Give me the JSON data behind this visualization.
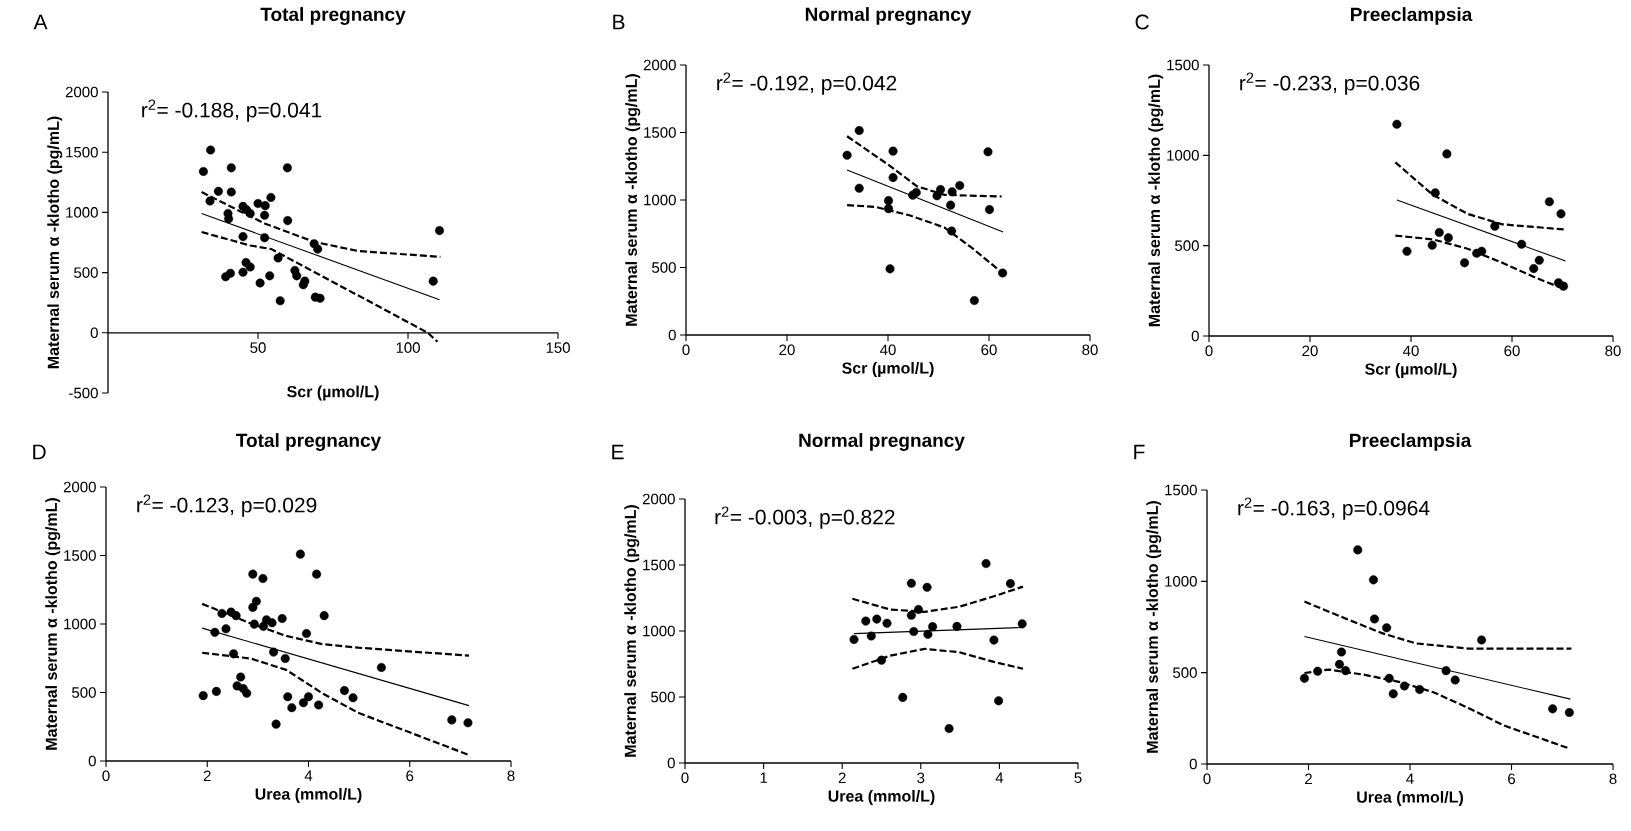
{
  "chart_data": [
    {
      "type": "scatter",
      "title": "Total pregnancy",
      "xlabel": "Scr (µmol/L)",
      "ylabel": "Maternal serum α -klotho (pg/mL)",
      "annotations": [
        "A",
        "r$^{2}$= -0.188, p=0.041"
      ],
      "xlim": [
        0,
        150
      ],
      "ylim": [
        -500,
        2000
      ],
      "xticks": [
        50,
        100,
        150
      ],
      "yticks": [
        -500,
        0,
        500,
        1000,
        1500,
        2000
      ],
      "series": [
        {
          "type": "scatter",
          "marker": "circle",
          "color": "#000000",
          "x": [
            31.8,
            34.2,
            34,
            36.8,
            41.1,
            41.1,
            39.2,
            40.8,
            40,
            40.2,
            45,
            46.2,
            47.4,
            45,
            46,
            47.4,
            45,
            50,
            52.4,
            52.2,
            54.3,
            52.2,
            50.7,
            53.9,
            56.7,
            57.4,
            59.8,
            59.9,
            62.3,
            62.9,
            65.1,
            65.6,
            68.7,
            69.9,
            69.1,
            70.7,
            108.4,
            110.5
          ],
          "values": [
            1340,
            1518,
            1095,
            1175,
            1370,
            1169,
            465,
            494,
            991,
            947,
            1050,
            1021,
            991,
            799,
            583,
            547,
            503,
            1074,
            1056,
            976,
            1124,
            790,
            414,
            473,
            621,
            266,
            1370,
            932,
            518,
            473,
            399,
            429,
            740,
            695,
            296,
            287,
            429,
            849
          ]
        },
        {
          "type": "line",
          "marker": "none",
          "line_style": "solid",
          "color": "#000000",
          "x": [
            31.2,
            110.5
          ],
          "values": [
            991,
            275
          ]
        },
        {
          "type": "line",
          "marker": "none",
          "line_style": "dashed",
          "color": "#000000",
          "x": [
            31.2,
            52.2,
            68.9,
            83.3,
            110.8
          ],
          "values": [
            1169,
            908,
            754,
            680,
            630
          ]
        },
        {
          "type": "line",
          "marker": "none",
          "line_style": "dashed",
          "color": "#000000",
          "x": [
            31.2,
            47.4,
            54.5,
            70,
            90,
            106.6,
            109.8
          ],
          "values": [
            837,
            725,
            695,
            488,
            222,
            0,
            -74
          ]
        }
      ]
    },
    {
      "type": "scatter",
      "title": "Normal pregnancy",
      "xlabel": "Scr (µmol/L)",
      "ylabel": "Maternal serum α -klotho (pg/mL)",
      "annotations": [
        "B",
        "r$^{2}$= -0.192, p=0.042"
      ],
      "xlim": [
        0,
        80
      ],
      "ylim": [
        0,
        2000
      ],
      "xticks": [
        0,
        20,
        40,
        60,
        80
      ],
      "yticks": [
        0,
        500,
        1000,
        1500,
        2000
      ],
      "series": [
        {
          "type": "scatter",
          "marker": "circle",
          "color": "#000000",
          "x": [
            31.9,
            34.3,
            34.3,
            41,
            41,
            40.1,
            40.1,
            40.4,
            44.9,
            45.6,
            49.7,
            50.4,
            52.7,
            54.2,
            52.4,
            52.6,
            59.8,
            60.1,
            57.1,
            62.7
          ],
          "values": [
            1332,
            1515,
            1087,
            1362,
            1166,
            995,
            936,
            490,
            1036,
            1056,
            1031,
            1077,
            1061,
            1107,
            962,
            770,
            1357,
            929,
            255,
            459
          ]
        },
        {
          "type": "line",
          "marker": "none",
          "line_style": "solid",
          "color": "#000000",
          "x": [
            31.9,
            62.8
          ],
          "values": [
            1222,
            763
          ]
        },
        {
          "type": "line",
          "marker": "none",
          "line_style": "dashed",
          "color": "#000000",
          "x": [
            31.9,
            40.3,
            45.7,
            51.2,
            62.5
          ],
          "values": [
            1472,
            1255,
            1102,
            1038,
            1026
          ]
        },
        {
          "type": "line",
          "marker": "none",
          "line_style": "dashed",
          "color": "#000000",
          "x": [
            31.9,
            37.5,
            44.4,
            51.2,
            56.7,
            62.5
          ],
          "values": [
            962,
            949,
            885,
            796,
            643,
            464
          ]
        }
      ]
    },
    {
      "type": "scatter",
      "title": "Preeclampsia",
      "xlabel": "Scr (µmol/L)",
      "ylabel": "Maternal serum α -klotho (pg/mL)",
      "annotations": [
        "C",
        "r$^{2}$= -0.233, p=0.036"
      ],
      "xlim": [
        0,
        80
      ],
      "ylim": [
        0,
        1500
      ],
      "xticks": [
        0,
        20,
        40,
        60,
        80
      ],
      "yticks": [
        0,
        500,
        1000,
        1500
      ],
      "series": [
        {
          "type": "scatter",
          "marker": "circle",
          "color": "#000000",
          "x": [
            37.2,
            47.1,
            44.8,
            39.2,
            44.2,
            45.6,
            47.4,
            50.6,
            53,
            54,
            56.6,
            61.9,
            64.3,
            65.4,
            67.4,
            69.7,
            69.2,
            70.2
          ],
          "values": [
            1172,
            1008,
            792,
            469,
            502,
            573,
            544,
            405,
            458,
            469,
            608,
            508,
            373,
            419,
            743,
            676,
            295,
            276
          ]
        },
        {
          "type": "line",
          "marker": "none",
          "line_style": "solid",
          "color": "#000000",
          "x": [
            37.2,
            70.6
          ],
          "values": [
            753,
            415
          ]
        },
        {
          "type": "line",
          "marker": "none",
          "line_style": "dashed",
          "color": "#000000",
          "x": [
            36.9,
            44.3,
            51.2,
            58.1,
            70.6
          ],
          "values": [
            961,
            782,
            676,
            618,
            589
          ]
        },
        {
          "type": "line",
          "marker": "none",
          "line_style": "dashed",
          "color": "#000000",
          "x": [
            36.9,
            44.3,
            51.2,
            58.1,
            65,
            70.2
          ],
          "values": [
            556,
            535,
            483,
            405,
            319,
            261
          ]
        }
      ]
    },
    {
      "type": "scatter",
      "title": "Total pregnancy",
      "xlabel": "Urea (mmol/L)",
      "ylabel": "Maternal serum α -klotho (pg/mL)",
      "annotations": [
        "D",
        "r$^{2}$= -0.123, p=0.029"
      ],
      "xlim": [
        0,
        8
      ],
      "ylim": [
        0,
        2000
      ],
      "xticks": [
        0,
        2,
        4,
        6,
        8
      ],
      "yticks": [
        0,
        500,
        1000,
        1500,
        2000
      ],
      "series": [
        {
          "type": "scatter",
          "marker": "circle",
          "color": "#000000",
          "x": [
            1.92,
            2.18,
            2.15,
            2.37,
            2.29,
            2.47,
            2.57,
            2.52,
            2.66,
            2.59,
            2.71,
            2.78,
            2.9,
            3.1,
            2.97,
            2.9,
            2.93,
            3.11,
            3.17,
            3.28,
            3.48,
            3.31,
            3.54,
            3.36,
            3.59,
            3.67,
            3.84,
            3.96,
            3.9,
            4.0,
            4.16,
            4.31,
            4.2,
            4.71,
            4.88,
            5.44,
            6.83,
            7.15
          ],
          "values": [
            477,
            508,
            939,
            965,
            1077,
            1087,
            1061,
            782,
            613,
            548,
            529,
            495,
            1364,
            1332,
            1166,
            1121,
            999,
            983,
            1030,
            1009,
            1040,
            795,
            748,
            269,
            469,
            389,
            1510,
            931,
            425,
            469,
            1364,
            1061,
            409,
            514,
            462,
            683,
            300,
            279
          ]
        },
        {
          "type": "line",
          "marker": "none",
          "line_style": "solid",
          "color": "#000000",
          "x": [
            1.9,
            7.17
          ],
          "values": [
            970,
            404
          ]
        },
        {
          "type": "line",
          "marker": "none",
          "line_style": "dashed",
          "color": "#000000",
          "x": [
            1.9,
            2.86,
            3.56,
            4.27,
            4.98,
            7.17
          ],
          "values": [
            1147,
            1004,
            913,
            853,
            827,
            769
          ]
        },
        {
          "type": "line",
          "marker": "none",
          "line_style": "dashed",
          "color": "#000000",
          "x": [
            1.9,
            2.86,
            3.56,
            4.27,
            4.98,
            7.17
          ],
          "values": [
            790,
            748,
            665,
            495,
            352,
            44
          ]
        }
      ]
    },
    {
      "type": "scatter",
      "title": "Normal pregnancy",
      "xlabel": "Urea (mmol/L)",
      "ylabel": "Maternal serum α -klotho (pg/mL)",
      "annotations": [
        "E",
        "r$^{2}$= -0.003, p=0.822"
      ],
      "xlim": [
        0,
        5
      ],
      "ylim": [
        0,
        2000
      ],
      "xticks": [
        0,
        1,
        2,
        3,
        4,
        5
      ],
      "yticks": [
        0,
        500,
        1000,
        1500,
        2000
      ],
      "series": [
        {
          "type": "scatter",
          "marker": "circle",
          "color": "#000000",
          "x": [
            2.15,
            2.3,
            2.44,
            2.57,
            2.37,
            2.5,
            2.77,
            2.88,
            2.88,
            2.97,
            2.91,
            3.08,
            3.09,
            3.15,
            3.36,
            3.46,
            3.83,
            3.93,
            3.99,
            4.14,
            4.29
          ],
          "values": [
            936,
            1075,
            1090,
            1059,
            962,
            779,
            497,
            1362,
            1119,
            1163,
            996,
            1331,
            975,
            1033,
            261,
            1035,
            1511,
            931,
            471,
            1359,
            1054
          ]
        },
        {
          "type": "line",
          "marker": "none",
          "line_style": "solid",
          "color": "#000000",
          "x": [
            2.15,
            4.3
          ],
          "values": [
            980,
            1027
          ]
        },
        {
          "type": "line",
          "marker": "none",
          "line_style": "dashed",
          "color": "#000000",
          "x": [
            2.13,
            2.61,
            3.05,
            3.49,
            3.93,
            4.3
          ],
          "values": [
            1244,
            1163,
            1145,
            1184,
            1263,
            1336
          ]
        },
        {
          "type": "line",
          "marker": "none",
          "line_style": "dashed",
          "color": "#000000",
          "x": [
            2.13,
            2.61,
            3.05,
            3.49,
            3.93,
            4.3
          ],
          "values": [
            714,
            813,
            865,
            839,
            766,
            714
          ]
        }
      ]
    },
    {
      "type": "scatter",
      "title": "Preeclampsia",
      "xlabel": "Urea (mmol/L)",
      "ylabel": "Maternal serum α -klotho (pg/mL)",
      "annotations": [
        "F",
        "r$^{2}$= -0.163, p=0.0964"
      ],
      "xlim": [
        0,
        8
      ],
      "ylim": [
        0,
        1500
      ],
      "xticks": [
        0,
        2,
        4,
        6,
        8
      ],
      "yticks": [
        0,
        500,
        1000,
        1500
      ],
      "series": [
        {
          "type": "scatter",
          "marker": "circle",
          "color": "#000000",
          "x": [
            1.92,
            2.18,
            2.65,
            2.61,
            2.73,
            2.97,
            3.28,
            3.3,
            3.54,
            3.59,
            3.67,
            3.89,
            4.19,
            4.71,
            4.89,
            5.41,
            6.81,
            7.14
          ],
          "values": [
            469,
            508,
            613,
            546,
            511,
            1172,
            1008,
            794,
            746,
            469,
            384,
            427,
            408,
            511,
            460,
            679,
            302,
            282
          ]
        },
        {
          "type": "line",
          "marker": "none",
          "line_style": "solid",
          "color": "#000000",
          "x": [
            1.92,
            7.16
          ],
          "values": [
            698,
            355
          ]
        },
        {
          "type": "line",
          "marker": "none",
          "line_style": "dashed",
          "color": "#000000",
          "x": [
            1.92,
            2.75,
            3.43,
            4.12,
            5.15,
            7.18
          ],
          "values": [
            889,
            794,
            718,
            660,
            632,
            632
          ]
        },
        {
          "type": "line",
          "marker": "none",
          "line_style": "dashed",
          "color": "#000000",
          "x": [
            1.92,
            2.4,
            3.09,
            3.78,
            4.46,
            5.15,
            5.84,
            7.11
          ],
          "values": [
            498,
            517,
            489,
            450,
            393,
            307,
            212,
            88
          ]
        }
      ]
    }
  ]
}
